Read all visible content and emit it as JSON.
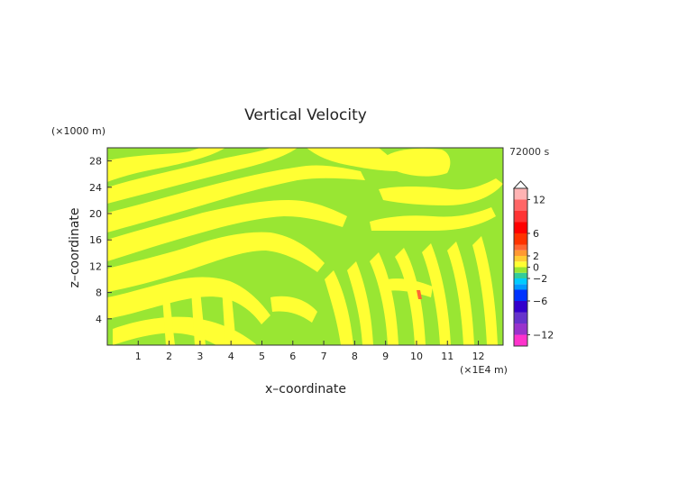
{
  "chart_data": {
    "type": "heatmap",
    "title": "Vertical Velocity",
    "time_label": "72000 s",
    "xlabel": "x–coordinate",
    "ylabel": "z–coordinate",
    "x_unit": "(×1E4 m)",
    "y_unit": "(×1000 m)",
    "x_ticks": [
      "1",
      "2",
      "3",
      "4",
      "5",
      "6",
      "7",
      "8",
      "9",
      "10",
      "11",
      "12"
    ],
    "y_ticks": [
      "4",
      "8",
      "12",
      "16",
      "20",
      "24",
      "28"
    ],
    "xlim": [
      0,
      12.8
    ],
    "ylim": [
      0,
      30
    ],
    "field_description_colors": {
      "negative_small": "#99e633",
      "positive_small": "#ffff33",
      "positive_peak": "#ff6633"
    },
    "colorbar": {
      "labels": [
        "12",
        "6",
        "2",
        "0",
        "−2",
        "−6",
        "−12"
      ],
      "label_values": [
        12,
        6,
        2,
        0,
        -2,
        -6,
        -12
      ],
      "range": [
        -14,
        14
      ],
      "bands": [
        {
          "from": -14,
          "to": -12,
          "color": "#ff33cc"
        },
        {
          "from": -12,
          "to": -10,
          "color": "#9933cc"
        },
        {
          "from": -10,
          "to": -8,
          "color": "#6633cc"
        },
        {
          "from": -8,
          "to": -6,
          "color": "#3300cc"
        },
        {
          "from": -6,
          "to": -4,
          "color": "#0033ff"
        },
        {
          "from": -4,
          "to": -3,
          "color": "#0099ff"
        },
        {
          "from": -3,
          "to": -2,
          "color": "#00ccff"
        },
        {
          "from": -2,
          "to": -1,
          "color": "#33cc99"
        },
        {
          "from": -1,
          "to": 0,
          "color": "#99e633"
        },
        {
          "from": 0,
          "to": 1,
          "color": "#ffff33"
        },
        {
          "from": 1,
          "to": 2,
          "color": "#ffcc33"
        },
        {
          "from": 2,
          "to": 3,
          "color": "#ff9933"
        },
        {
          "from": 3,
          "to": 4,
          "color": "#ff6633"
        },
        {
          "from": 4,
          "to": 6,
          "color": "#ff3300"
        },
        {
          "from": 6,
          "to": 8,
          "color": "#ff0000"
        },
        {
          "from": 8,
          "to": 10,
          "color": "#ff3333"
        },
        {
          "from": 10,
          "to": 12,
          "color": "#ff6666"
        },
        {
          "from": 12,
          "to": 14,
          "color": "#ffb3b3"
        }
      ]
    }
  }
}
